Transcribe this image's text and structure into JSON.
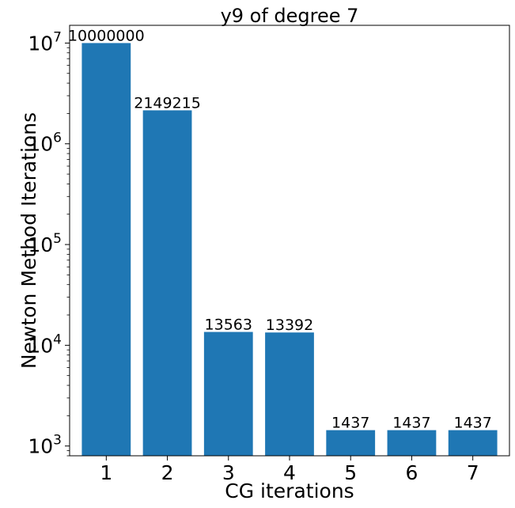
{
  "chart_data": {
    "type": "bar",
    "title": "y9 of degree 7",
    "xlabel": "CG iterations",
    "ylabel": "Newton Method Iterations",
    "yscale": "log",
    "ylim": [
      800,
      15000000
    ],
    "categories": [
      "1",
      "2",
      "3",
      "4",
      "5",
      "6",
      "7"
    ],
    "values": [
      10000000,
      2149215,
      13563,
      13392,
      1437,
      1437,
      1437
    ],
    "value_labels": [
      "10000000",
      "2149215",
      "13563",
      "13392",
      "1437",
      "1437",
      "1437"
    ],
    "y_ticks": [
      {
        "value": 1000,
        "base": "10",
        "exp": "3"
      },
      {
        "value": 10000,
        "base": "10",
        "exp": "4"
      },
      {
        "value": 100000,
        "base": "10",
        "exp": "5"
      },
      {
        "value": 1000000,
        "base": "10",
        "exp": "6"
      },
      {
        "value": 10000000,
        "base": "10",
        "exp": "7"
      }
    ],
    "grid": false,
    "bar_color": "#1f77b4"
  }
}
